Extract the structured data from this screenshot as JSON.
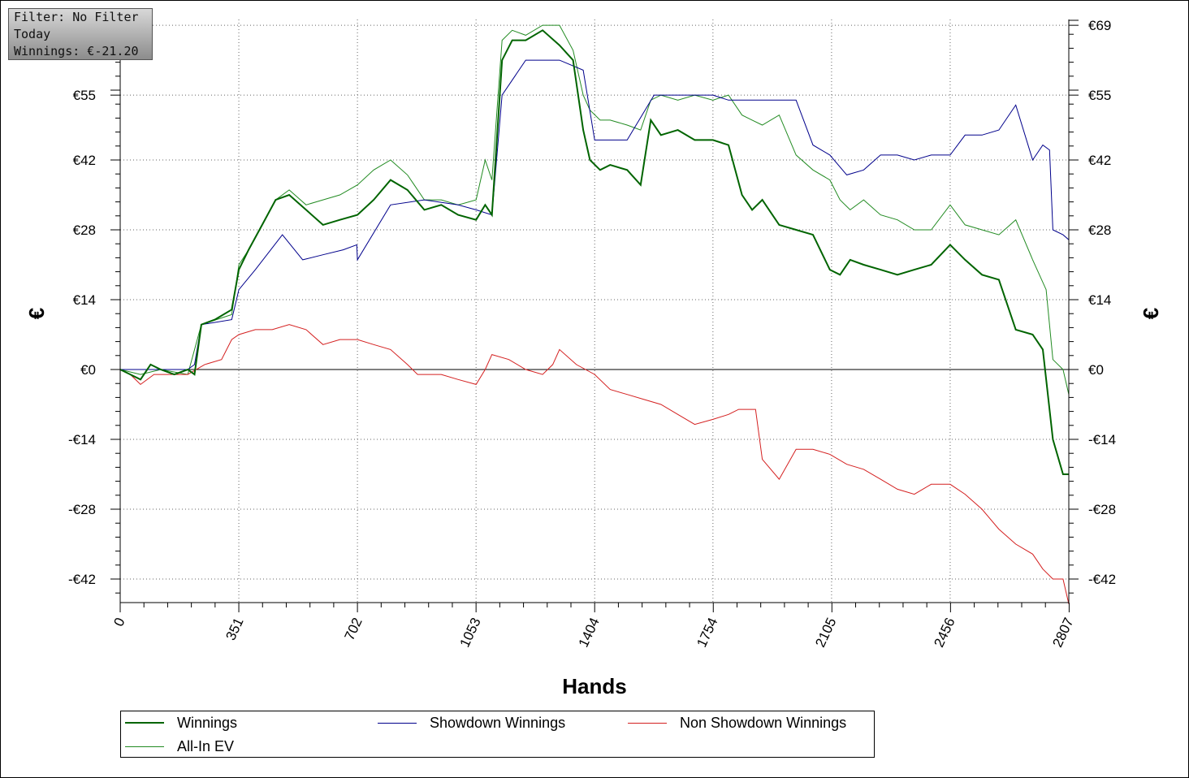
{
  "info_box": {
    "filter": "Filter: No Filter",
    "period": "Today",
    "winnings": "Winnings: €-21.20"
  },
  "legend": [
    {
      "name": "Winnings",
      "color": "#006400",
      "width": 2
    },
    {
      "name": "Showdown Winnings",
      "color": "#00008b",
      "width": 1
    },
    {
      "name": "Non Showdown Winnings",
      "color": "#d42020",
      "width": 1
    },
    {
      "name": "All-In EV",
      "color": "#228b22",
      "width": 1
    }
  ],
  "chart_data": {
    "type": "line",
    "title": "",
    "xlabel": "Hands",
    "ylabel": "€",
    "xlim": [
      0,
      2807
    ],
    "ylim": [
      -47,
      70
    ],
    "x_ticks": [
      0,
      351,
      702,
      1053,
      1404,
      1754,
      2105,
      2456,
      2807
    ],
    "y_ticks": [
      -42,
      -28,
      -14,
      0,
      14,
      28,
      42,
      55,
      69
    ],
    "y_tick_labels": [
      "-€42",
      "-€28",
      "-€14",
      "€0",
      "€14",
      "€28",
      "€42",
      "€55",
      "€69"
    ],
    "grid": true,
    "legend_position": "bottom",
    "series": [
      {
        "name": "Winnings",
        "color": "#006400",
        "x": [
          0,
          30,
          60,
          90,
          120,
          160,
          200,
          220,
          240,
          280,
          330,
          351,
          380,
          420,
          460,
          500,
          550,
          600,
          650,
          702,
          750,
          800,
          850,
          900,
          950,
          1000,
          1053,
          1080,
          1100,
          1130,
          1160,
          1200,
          1250,
          1300,
          1340,
          1370,
          1390,
          1420,
          1450,
          1500,
          1540,
          1570,
          1600,
          1650,
          1700,
          1754,
          1800,
          1840,
          1870,
          1900,
          1950,
          2000,
          2050,
          2100,
          2130,
          2160,
          2200,
          2250,
          2300,
          2350,
          2400,
          2456,
          2500,
          2550,
          2600,
          2650,
          2700,
          2730,
          2760,
          2790,
          2807
        ],
        "y": [
          0,
          -1,
          -2,
          1,
          0,
          -1,
          0,
          -1,
          9,
          10,
          12,
          20,
          24,
          29,
          34,
          35,
          32,
          29,
          30,
          31,
          34,
          38,
          36,
          32,
          33,
          31,
          30,
          33,
          31,
          62,
          66,
          66,
          68,
          65,
          62,
          48,
          42,
          40,
          41,
          40,
          37,
          50,
          47,
          48,
          46,
          46,
          45,
          35,
          32,
          34,
          29,
          28,
          27,
          20,
          19,
          22,
          21,
          20,
          19,
          20,
          21,
          25,
          22,
          19,
          18,
          8,
          7,
          4,
          -14,
          -21,
          -21
        ]
      },
      {
        "name": "Showdown Winnings",
        "color": "#00008b",
        "x": [
          0,
          60,
          120,
          200,
          220,
          240,
          330,
          351,
          400,
          480,
          540,
          600,
          660,
          700,
          702,
          800,
          900,
          1000,
          1053,
          1100,
          1130,
          1200,
          1300,
          1370,
          1404,
          1450,
          1500,
          1580,
          1600,
          1700,
          1754,
          1800,
          1850,
          1900,
          2000,
          2050,
          2100,
          2150,
          2200,
          2250,
          2300,
          2350,
          2400,
          2456,
          2500,
          2550,
          2600,
          2650,
          2700,
          2730,
          2750,
          2760,
          2790,
          2807
        ],
        "y": [
          0,
          0,
          0,
          0,
          1,
          9,
          10,
          16,
          20,
          27,
          22,
          23,
          24,
          25,
          22,
          33,
          34,
          33,
          32,
          31,
          55,
          62,
          62,
          60,
          46,
          46,
          46,
          55,
          55,
          55,
          55,
          54,
          54,
          54,
          54,
          45,
          43,
          39,
          40,
          43,
          43,
          42,
          43,
          43,
          47,
          47,
          48,
          53,
          42,
          45,
          44,
          28,
          27,
          26
        ]
      },
      {
        "name": "Non Showdown Winnings",
        "color": "#d42020",
        "x": [
          0,
          30,
          60,
          100,
          150,
          200,
          250,
          300,
          330,
          351,
          400,
          450,
          500,
          550,
          600,
          650,
          702,
          750,
          800,
          850,
          880,
          900,
          950,
          1000,
          1053,
          1080,
          1100,
          1150,
          1200,
          1250,
          1280,
          1300,
          1350,
          1404,
          1450,
          1500,
          1550,
          1600,
          1650,
          1700,
          1754,
          1800,
          1830,
          1880,
          1900,
          1950,
          2000,
          2050,
          2100,
          2150,
          2200,
          2250,
          2300,
          2350,
          2400,
          2456,
          2500,
          2550,
          2600,
          2650,
          2700,
          2730,
          2760,
          2790,
          2807
        ],
        "y": [
          0,
          -1,
          -3,
          -1,
          -1,
          -1,
          1,
          2,
          6,
          7,
          8,
          8,
          9,
          8,
          5,
          6,
          6,
          5,
          4,
          1,
          -1,
          -1,
          -1,
          -2,
          -3,
          0,
          3,
          2,
          0,
          -1,
          1,
          4,
          1,
          -1,
          -4,
          -5,
          -6,
          -7,
          -9,
          -11,
          -10,
          -9,
          -8,
          -8,
          -18,
          -22,
          -16,
          -16,
          -17,
          -19,
          -20,
          -22,
          -24,
          -25,
          -23,
          -23,
          -25,
          -28,
          -32,
          -35,
          -37,
          -40,
          -42,
          -42,
          -47
        ]
      },
      {
        "name": "All-In EV",
        "color": "#228b22",
        "x": [
          0,
          60,
          120,
          200,
          240,
          330,
          351,
          380,
          420,
          460,
          500,
          550,
          600,
          650,
          702,
          750,
          800,
          850,
          900,
          950,
          1000,
          1053,
          1080,
          1100,
          1130,
          1160,
          1200,
          1250,
          1300,
          1340,
          1370,
          1390,
          1420,
          1450,
          1500,
          1540,
          1570,
          1600,
          1650,
          1700,
          1754,
          1800,
          1840,
          1870,
          1900,
          1950,
          2000,
          2050,
          2100,
          2130,
          2160,
          2200,
          2250,
          2300,
          2350,
          2400,
          2456,
          2500,
          2550,
          2600,
          2650,
          2700,
          2740,
          2760,
          2790,
          2807
        ],
        "y": [
          0,
          -1,
          0,
          -1,
          9,
          11,
          21,
          24,
          29,
          34,
          36,
          33,
          34,
          35,
          37,
          40,
          42,
          39,
          34,
          34,
          33,
          34,
          42,
          38,
          66,
          68,
          67,
          69,
          69,
          64,
          55,
          52,
          50,
          50,
          49,
          48,
          54,
          55,
          54,
          55,
          54,
          55,
          51,
          50,
          49,
          51,
          43,
          40,
          38,
          34,
          32,
          34,
          31,
          30,
          28,
          28,
          33,
          29,
          28,
          27,
          30,
          22,
          16,
          2,
          0,
          -5
        ]
      }
    ]
  }
}
